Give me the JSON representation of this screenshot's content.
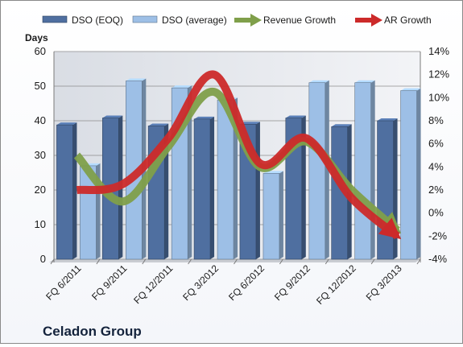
{
  "chart_data": {
    "type": "bar",
    "title": "",
    "caption": "Celadon Group",
    "categories": [
      "FQ 6/2011",
      "FQ 9/2011",
      "FQ 12/2011",
      "FQ 3/2012",
      "FQ 6/2012",
      "FQ 9/2012",
      "FQ 12/2012",
      "FQ 3/2013"
    ],
    "y_left": {
      "label": "Days",
      "min": 0,
      "max": 60,
      "step": 10
    },
    "y_right": {
      "label": "",
      "min": -4,
      "max": 14,
      "step": 2,
      "unit": "%"
    },
    "bar_series": [
      {
        "name": "DSO (EOQ)",
        "color": "#4f6fa0",
        "values": [
          38.8,
          40.8,
          38.5,
          40.5,
          39.0,
          40.8,
          38.3,
          40.0
        ]
      },
      {
        "name": "DSO (average)",
        "color": "#9dbfe6",
        "values": [
          27.0,
          51.5,
          49.5,
          46.0,
          24.8,
          51.0,
          51.0,
          48.7
        ]
      }
    ],
    "line_series": [
      {
        "name": "Revenue Growth",
        "color": "#7f9f4a",
        "axis": "right",
        "values": [
          5.0,
          1.0,
          5.8,
          10.5,
          4.0,
          6.2,
          2.0,
          -1.5
        ]
      },
      {
        "name": "AR Growth",
        "color": "#cc2a2a",
        "axis": "right",
        "values": [
          2.0,
          2.5,
          6.5,
          12.0,
          4.3,
          6.5,
          1.3,
          -2.0
        ]
      }
    ],
    "grid": true,
    "legend": "top"
  }
}
